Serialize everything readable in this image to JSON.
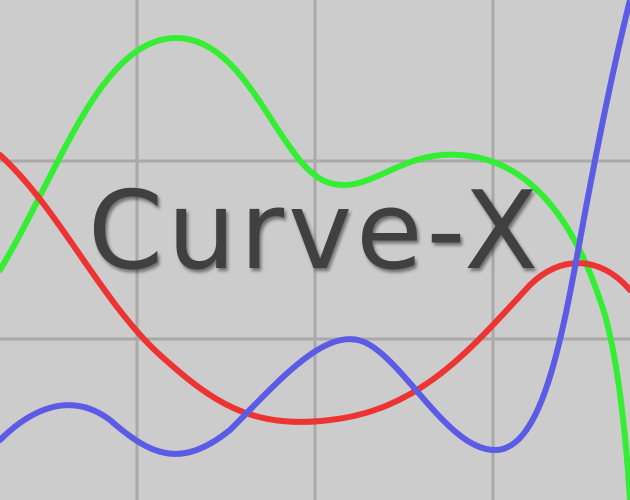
{
  "title": "Curve-X",
  "colors": {
    "background": "#cccccc",
    "grid": "#a9a9a9",
    "title_text": "#404040"
  },
  "curves": [
    {
      "name": "green-curve",
      "color": "#33ee33"
    },
    {
      "name": "red-curve",
      "color": "#ee3333"
    },
    {
      "name": "blue-curve",
      "color": "#5b5be6"
    }
  ]
}
